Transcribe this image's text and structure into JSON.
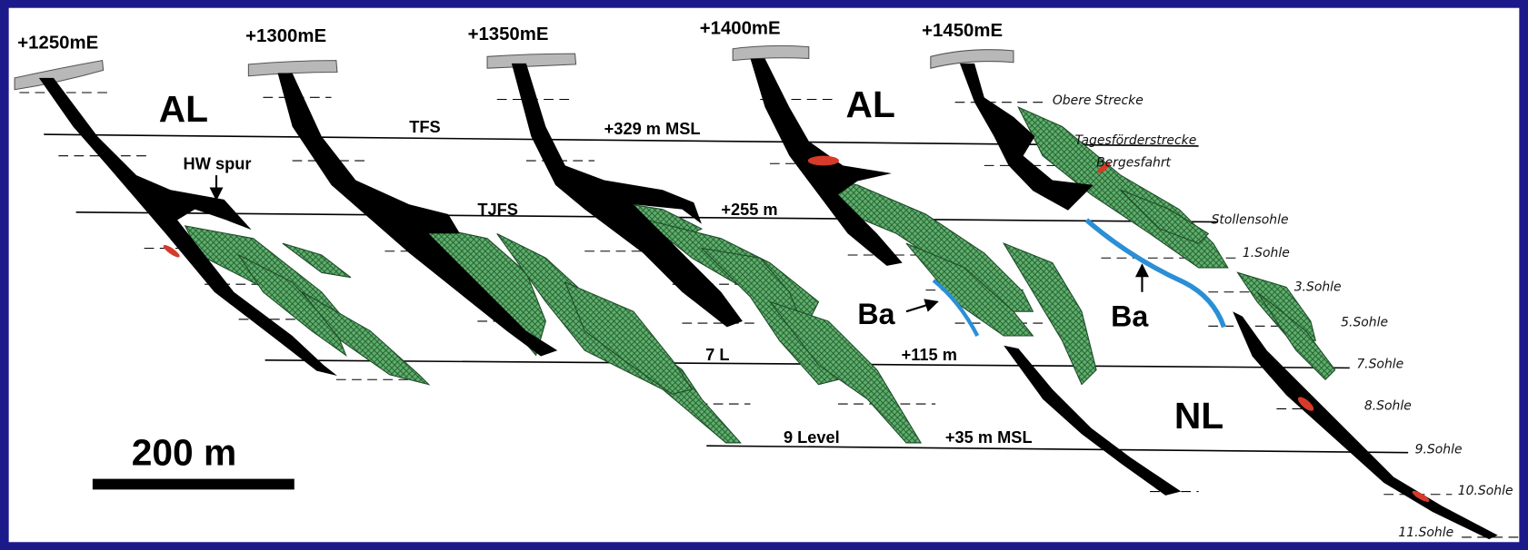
{
  "sections": [
    "+1250mE",
    "+1300mE",
    "+1350mE",
    "+1400mE",
    "+1450mE"
  ],
  "zones": [
    "AL",
    "AL",
    "NL"
  ],
  "labels": {
    "tfs": "TFS",
    "msl329": "+329 m MSL",
    "hw_spur": "HW spur",
    "tjfs": "TJFS",
    "m255": "+255 m",
    "ba1": "Ba",
    "ba2": "Ba",
    "l7": "7 L",
    "m115": "+115 m",
    "level9": "9 Level",
    "msl35": "+35 m MSL"
  },
  "scale_bar": "200 m",
  "levels": [
    "Obere Strecke",
    "Tagesförderstrecke",
    "Bergesfahrt",
    "Stollensohle",
    "1.Sohle",
    "3.Sohle",
    "5.Sohle",
    "7.Sohle",
    "8.Sohle",
    "9.Sohle",
    "10.Sohle",
    "11.Sohle"
  ]
}
